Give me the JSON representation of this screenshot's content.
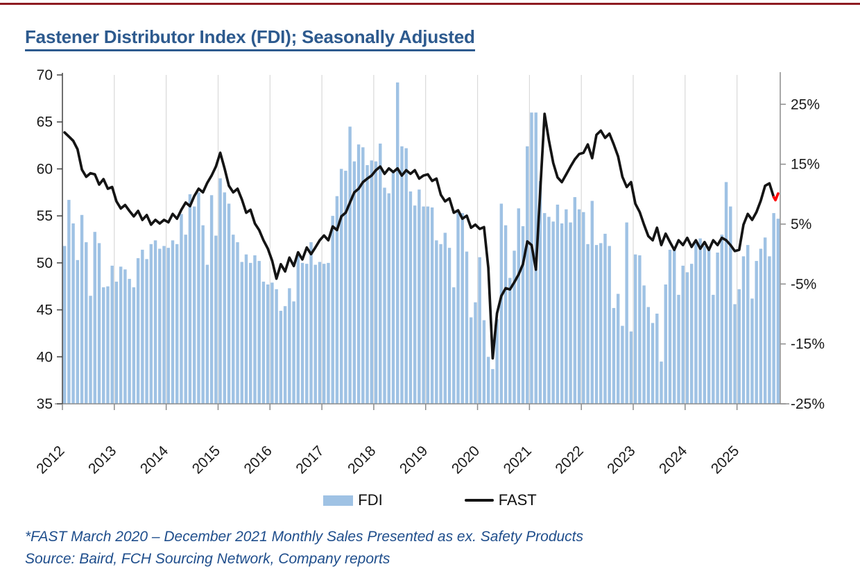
{
  "page": {
    "accent_color": "#8E1B21",
    "title": "Fastener Distributor Index (FDI); Seasonally Adjusted",
    "footnotes": [
      "*FAST March 2020 – December 2021 Monthly Sales Presented as ex. Safety Products",
      "Source: Baird, FCH Sourcing Network, Company reports"
    ]
  },
  "legend": {
    "fdi_label": "FDI",
    "fast_label": "FAST"
  },
  "chart_data": {
    "type": "bar",
    "title": "Fastener Distributor Index (FDI); Seasonally Adjusted",
    "x_frequency": "monthly",
    "x_start": "2012-01",
    "x_end": "2025-10",
    "x_tick_labels": [
      "2012",
      "2013",
      "2014",
      "2015",
      "2016",
      "2017",
      "2018",
      "2019",
      "2020",
      "2021",
      "2022",
      "2023",
      "2024",
      "2025"
    ],
    "grid": "vertical-yearly",
    "legend_position": "bottom",
    "left_axis": {
      "min": 35,
      "max": 70,
      "ticks": [
        70,
        65,
        60,
        55,
        50,
        45,
        40,
        35
      ]
    },
    "right_axis": {
      "min_pct": -25,
      "max_pct": 29.9,
      "ticks_pct": [
        25,
        15,
        5,
        -5,
        -15,
        -25
      ]
    },
    "series": [
      {
        "name": "FDI",
        "type": "bar",
        "axis": "left",
        "color": "#9FC2E4",
        "values": [
          51.8,
          56.7,
          54.2,
          50.3,
          55.1,
          52.2,
          46.5,
          53.3,
          52.1,
          47.4,
          47.5,
          49.7,
          48.0,
          49.6,
          49.3,
          48.3,
          47.4,
          50.5,
          51.4,
          50.4,
          52.0,
          52.4,
          51.5,
          51.8,
          51.6,
          52.4,
          52.0,
          55.2,
          53.0,
          57.3,
          56.0,
          57.5,
          54.0,
          49.8,
          57.2,
          52.9,
          59.0,
          57.5,
          56.3,
          53.0,
          52.2,
          50.1,
          50.9,
          50.0,
          50.8,
          50.2,
          48.0,
          47.7,
          47.9,
          47.2,
          44.9,
          45.4,
          47.3,
          45.9,
          51.0,
          50.0,
          49.9,
          52.2,
          49.8,
          50.1,
          49.9,
          50.0,
          55.0,
          57.1,
          60.0,
          59.8,
          64.5,
          60.8,
          62.6,
          62.3,
          60.4,
          60.9,
          60.8,
          62.7,
          58.0,
          57.4,
          59.6,
          69.2,
          62.4,
          62.2,
          57.6,
          56.1,
          57.8,
          56.0,
          56.0,
          55.9,
          52.4,
          52.0,
          53.2,
          51.6,
          47.4,
          55.4,
          55.3,
          51.2,
          44.2,
          45.8,
          50.6,
          43.9,
          40.0,
          38.7,
          44.0,
          56.3,
          54.0,
          48.4,
          51.3,
          55.8,
          53.9,
          62.4,
          66.0,
          66.0,
          58.7,
          55.3,
          54.9,
          54.4,
          56.2,
          54.2,
          55.7,
          54.3,
          57.0,
          55.7,
          55.4,
          52.0,
          56.6,
          51.9,
          52.1,
          53.1,
          51.8,
          45.2,
          46.7,
          43.3,
          54.3,
          42.7,
          50.9,
          50.8,
          47.6,
          45.3,
          43.6,
          44.6,
          39.5,
          47.7,
          51.4,
          51.5,
          46.6,
          49.7,
          49.0,
          49.9,
          52.4,
          52.6,
          51.8,
          51.4,
          46.6,
          51.1,
          53.0,
          58.6,
          56.0,
          45.6,
          47.2,
          50.7,
          51.9,
          46.2,
          50.2,
          51.5,
          52.7,
          50.7,
          55.3,
          54.7
        ]
      },
      {
        "name": "FAST",
        "type": "line",
        "axis": "right",
        "color": "#141414",
        "highlight_color": "#FF0000",
        "values_pct": [
          20.3,
          19.6,
          18.9,
          17.5,
          14.1,
          12.9,
          13.5,
          13.3,
          11.6,
          12.5,
          10.9,
          11.2,
          8.8,
          7.6,
          8.2,
          7.2,
          6.3,
          7.2,
          5.7,
          6.5,
          4.9,
          5.7,
          5.1,
          5.7,
          5.3,
          6.7,
          5.9,
          7.4,
          8.6,
          8.0,
          9.7,
          10.9,
          10.3,
          11.9,
          13.1,
          14.6,
          16.9,
          14.3,
          11.4,
          10.3,
          10.9,
          9.1,
          6.9,
          7.4,
          5.1,
          4.0,
          2.3,
          0.9,
          -1.1,
          -4.1,
          -1.7,
          -2.9,
          -0.6,
          -2.0,
          0.3,
          -0.9,
          1.1,
          0.0,
          1.1,
          2.3,
          3.1,
          2.3,
          4.6,
          4.0,
          6.3,
          6.9,
          8.6,
          10.3,
          10.9,
          12.0,
          12.6,
          13.1,
          14.0,
          14.6,
          13.4,
          14.3,
          13.7,
          14.3,
          13.1,
          14.0,
          13.4,
          14.0,
          12.6,
          13.1,
          13.3,
          12.2,
          12.6,
          9.9,
          8.8,
          9.3,
          6.9,
          7.3,
          5.9,
          6.4,
          4.4,
          4.9,
          4.2,
          4.5,
          -2.3,
          -17.4,
          -9.9,
          -7.0,
          -5.7,
          -5.9,
          -4.7,
          -3.4,
          -1.7,
          2.1,
          1.5,
          -2.6,
          10.7,
          23.4,
          19.0,
          15.2,
          12.8,
          12.0,
          13.3,
          14.6,
          15.8,
          16.7,
          16.9,
          18.3,
          16.0,
          19.9,
          20.6,
          19.4,
          20.1,
          18.3,
          16.3,
          12.9,
          11.2,
          12.0,
          8.4,
          7.0,
          4.9,
          3.0,
          2.3,
          4.4,
          1.5,
          3.4,
          2.0,
          0.7,
          2.3,
          1.5,
          2.7,
          1.2,
          2.3,
          0.9,
          2.0,
          0.7,
          2.3,
          1.5,
          2.7,
          2.3,
          1.5,
          0.5,
          0.7,
          4.9,
          6.7,
          5.7,
          7.0,
          8.9,
          11.4,
          11.8,
          9.5,
          10.1
        ],
        "red_tail_points": [
          [
            164,
            9.5
          ],
          [
            164.4,
            9.0
          ],
          [
            165,
            10.1
          ]
        ]
      }
    ]
  }
}
